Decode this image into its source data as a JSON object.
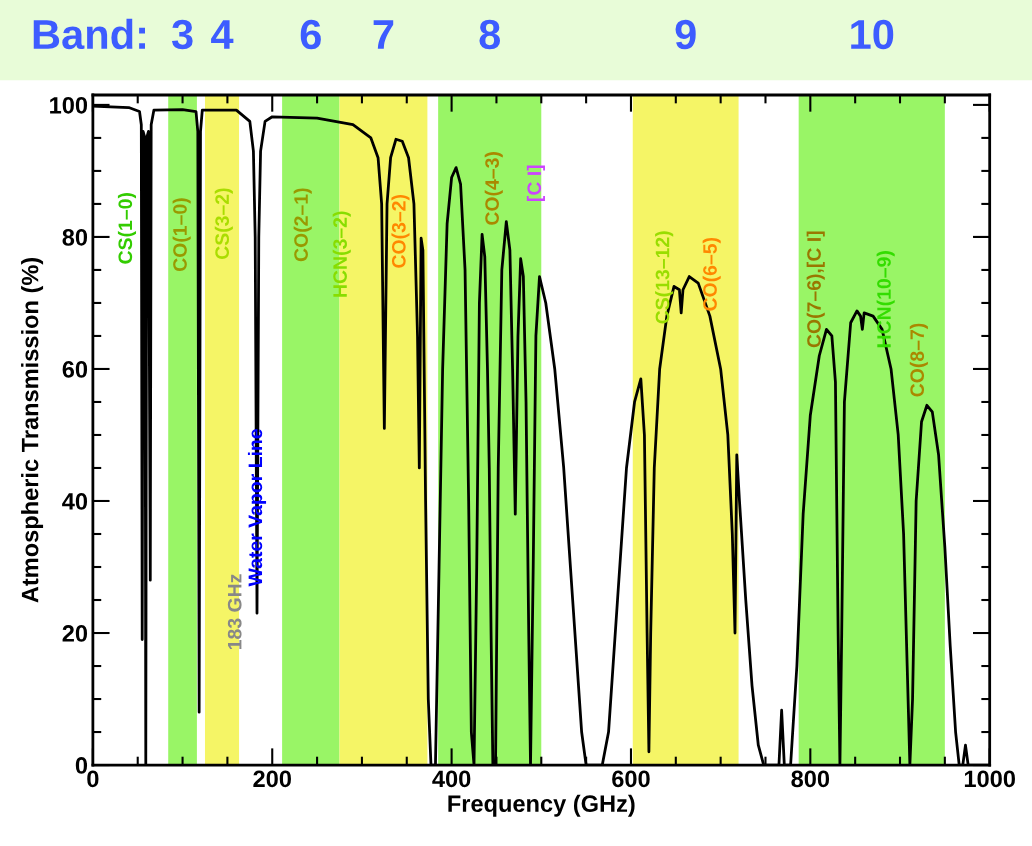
{
  "chart_data": {
    "type": "line",
    "xlabel": "Frequency (GHz)",
    "ylabel": "Atmospheric Transmission (%)",
    "x": [
      0,
      40,
      52,
      54,
      55,
      56,
      58,
      59,
      60,
      62,
      64,
      65,
      68,
      100,
      115,
      117,
      118.5,
      120,
      122,
      160,
      175,
      179,
      181,
      183,
      185,
      187,
      192,
      200,
      250,
      290,
      310,
      318,
      322,
      325,
      328,
      332,
      338,
      345,
      352,
      358,
      362,
      364,
      366,
      368,
      371,
      374,
      377,
      382,
      386,
      390,
      395,
      400,
      405,
      410,
      415,
      419,
      422,
      425,
      428,
      431,
      434,
      437,
      440,
      442,
      444,
      446,
      449,
      452,
      456,
      461,
      465,
      468,
      471,
      474,
      477,
      480,
      483,
      486,
      488,
      491,
      494,
      498,
      505,
      515,
      525,
      535,
      545,
      550,
      568,
      575,
      585,
      595,
      604,
      611,
      615,
      618,
      620,
      622,
      626,
      632,
      640,
      648,
      654,
      656,
      658,
      665,
      675,
      688,
      700,
      708,
      713,
      716,
      718,
      721,
      728,
      735,
      742,
      748,
      765,
      768,
      771,
      778,
      785,
      792,
      800,
      810,
      818,
      824,
      828,
      831,
      833,
      835,
      838,
      845,
      852,
      856,
      858,
      860,
      870,
      880,
      890,
      898,
      904,
      908,
      911,
      914,
      918,
      924,
      930,
      936,
      943,
      950,
      956,
      962,
      966,
      970,
      973,
      976,
      1000
    ],
    "series": [
      {
        "color": "#000000",
        "values": [
          99.8,
          99.6,
          99,
          97,
          19,
          96,
          95,
          0,
          95,
          96,
          28,
          97,
          99.2,
          99.3,
          99,
          96,
          8,
          96,
          99.2,
          99.2,
          97.5,
          93,
          80,
          23,
          80,
          93,
          97.5,
          98.2,
          98,
          97,
          95,
          92,
          85,
          51,
          85,
          92,
          94.8,
          94.5,
          92,
          85,
          65,
          45,
          79.8,
          78,
          40,
          10,
          0,
          0,
          30,
          60,
          82,
          89,
          90.5,
          88,
          75,
          40,
          5,
          0,
          30,
          70,
          80.4,
          77,
          60,
          45,
          20,
          0,
          0,
          45,
          75,
          82.3,
          78,
          60,
          38,
          65,
          76.7,
          74,
          55,
          20,
          0,
          30,
          65,
          74,
          70,
          60,
          45,
          25,
          5,
          0,
          0,
          5,
          25,
          45,
          55,
          58.5,
          50,
          20,
          2,
          20,
          45,
          60,
          68,
          72.5,
          72,
          68.5,
          72,
          74,
          73,
          68,
          60,
          50,
          35,
          20,
          47,
          40,
          25,
          12,
          3,
          0,
          0,
          8.3,
          0,
          0,
          15,
          38,
          53,
          62,
          66,
          65,
          58,
          20,
          0,
          20,
          55,
          67,
          68.8,
          68,
          66,
          68.5,
          68,
          66,
          60,
          50,
          35,
          15,
          0,
          10,
          40,
          52,
          54.5,
          53.5,
          47,
          33,
          18,
          5,
          0,
          0,
          3,
          0,
          0
        ]
      }
    ],
    "xlim": [
      0,
      1000
    ],
    "ylim": [
      0,
      101.5
    ],
    "xticks": [
      0,
      200,
      400,
      600,
      800,
      1000
    ],
    "yticks": [
      0,
      20,
      40,
      60,
      80,
      100
    ],
    "grid": false,
    "legend": false,
    "marker": "none",
    "line_style": "solid",
    "bands": [
      {
        "axis": "x",
        "from": 84,
        "to": 116,
        "label": "3",
        "color": "#99f566"
      },
      {
        "axis": "x",
        "from": 125,
        "to": 163,
        "label": "4",
        "color": "#f5f566"
      },
      {
        "axis": "x",
        "from": 211,
        "to": 275,
        "label": "6",
        "color": "#99f566"
      },
      {
        "axis": "x",
        "from": 275,
        "to": 373,
        "label": "7",
        "color": "#f5f566"
      },
      {
        "axis": "x",
        "from": 385,
        "to": 500,
        "label": "8",
        "color": "#99f566"
      },
      {
        "axis": "x",
        "from": 602,
        "to": 720,
        "label": "9",
        "color": "#f5f566"
      },
      {
        "axis": "x",
        "from": 787,
        "to": 950,
        "label": "10",
        "color": "#99f566"
      }
    ],
    "annotations": [
      "Band:",
      "CS(1–0)",
      "CO(1–0)",
      "CS(3–2)",
      "183 GHz",
      "Water Vapor Line",
      "CO(2–1)",
      "HCN(3–2)",
      "CO(3–2)",
      "CO(4–3)",
      "[C I]",
      "CS(13–12)",
      "CO(6–5)",
      "CO(7–6),[C I]",
      "HCN(10–9)",
      "CO(8–7)"
    ]
  }
}
